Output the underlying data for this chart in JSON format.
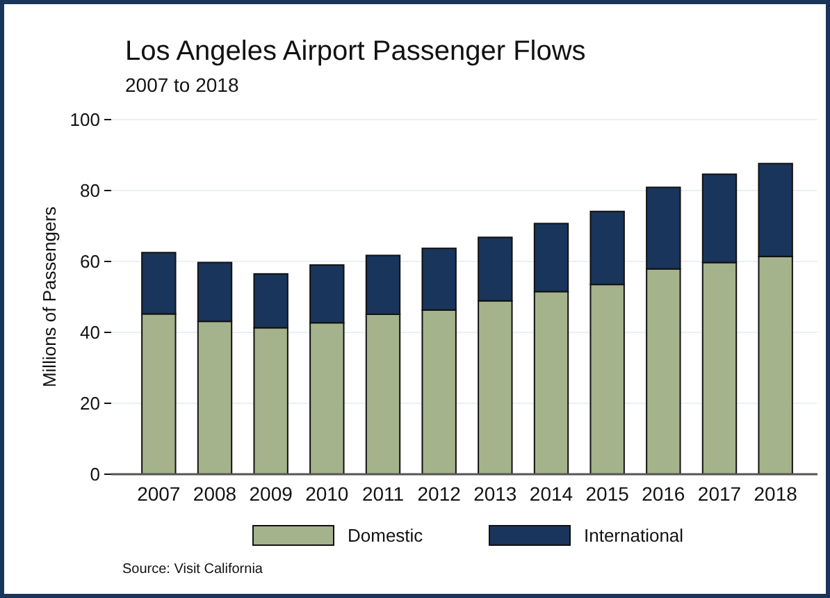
{
  "chart_data": {
    "type": "bar",
    "title": "Los Angeles Airport Passenger Flows",
    "subtitle": "2007 to 2018",
    "ylabel": "Millions of Passengers",
    "categories": [
      "2007",
      "2008",
      "2009",
      "2010",
      "2011",
      "2012",
      "2013",
      "2014",
      "2015",
      "2016",
      "2017",
      "2018"
    ],
    "series": [
      {
        "name": "Domestic",
        "color": "#a4b38c",
        "values": [
          45.2,
          43.1,
          41.3,
          42.7,
          45.1,
          46.3,
          48.9,
          51.5,
          53.5,
          57.9,
          59.7,
          61.4
        ]
      },
      {
        "name": "International",
        "color": "#1a355b",
        "values": [
          17.3,
          16.6,
          15.2,
          16.3,
          16.6,
          17.4,
          17.9,
          19.2,
          20.6,
          23.0,
          24.9,
          26.2
        ]
      }
    ],
    "stacked": true,
    "ylim": [
      0,
      100
    ],
    "yticks": [
      0,
      20,
      40,
      60,
      80,
      100
    ],
    "grid": "y",
    "legend": "bottom",
    "annotations": [
      "Source: Visit California"
    ]
  }
}
